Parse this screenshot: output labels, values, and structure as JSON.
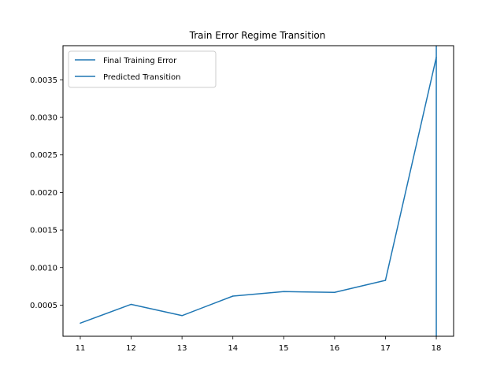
{
  "chart_data": {
    "type": "line",
    "title": "Train Error Regime Transition",
    "xlabel": "",
    "ylabel": "",
    "xlim": [
      10.66,
      18.34
    ],
    "ylim": [
      8.5e-05,
      0.003955
    ],
    "xticks": [
      11,
      12,
      13,
      14,
      15,
      16,
      17,
      18
    ],
    "yticks": [
      0.0005,
      0.001,
      0.0015,
      0.002,
      0.0025,
      0.003,
      0.0035
    ],
    "ytick_labels": [
      "0.0005",
      "0.0010",
      "0.0015",
      "0.0020",
      "0.0025",
      "0.0030",
      "0.0035"
    ],
    "grid": false,
    "legend_position": "upper-left",
    "series": [
      {
        "name": "Final Training Error",
        "color": "#1f77b4",
        "x": [
          11,
          12,
          13,
          14,
          15,
          16,
          17,
          18
        ],
        "y": [
          0.00026,
          0.00051,
          0.00036,
          0.00062,
          0.00068,
          0.00067,
          0.00083,
          0.0038
        ]
      }
    ],
    "vlines": [
      {
        "name": "Predicted Transition",
        "x": 18,
        "color": "#1f77b4"
      }
    ]
  }
}
